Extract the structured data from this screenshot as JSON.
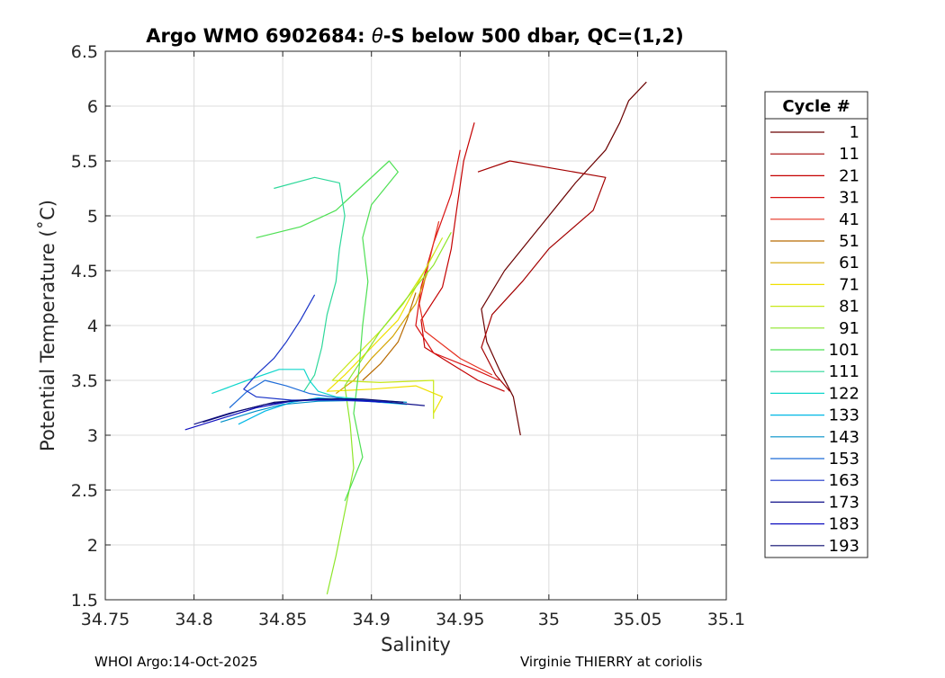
{
  "chart_data": {
    "type": "line",
    "title_prefix": "Argo WMO 6902684: ",
    "title_symbol": "θ",
    "title_suffix": "-S below 500 dbar,  QC=(1,2)",
    "xlabel": "Salinity",
    "ylabel": "Potential Temperature (˚C)",
    "xlim": [
      34.75,
      35.1
    ],
    "ylim": [
      1.5,
      6.5
    ],
    "xticks": [
      34.75,
      34.8,
      34.85,
      34.9,
      34.95,
      35,
      35.05,
      35.1
    ],
    "xtick_labels": [
      "34.75",
      "34.8",
      "34.85",
      "34.9",
      "34.95",
      "35",
      "35.05",
      "35.1"
    ],
    "yticks": [
      1.5,
      2,
      2.5,
      3,
      3.5,
      4,
      4.5,
      5,
      5.5,
      6,
      6.5
    ],
    "ytick_labels": [
      "1.5",
      "2",
      "2.5",
      "3",
      "3.5",
      "4",
      "4.5",
      "5",
      "5.5",
      "6",
      "6.5"
    ],
    "grid": true,
    "legend": {
      "title": "Cycle #",
      "placement": "right-outside",
      "entries": [
        {
          "label": "1",
          "color": "#6b0000"
        },
        {
          "label": "11",
          "color": "#a30000"
        },
        {
          "label": "21",
          "color": "#c40000"
        },
        {
          "label": "31",
          "color": "#d81010"
        },
        {
          "label": "41",
          "color": "#e63020"
        },
        {
          "label": "51",
          "color": "#b86a00"
        },
        {
          "label": "61",
          "color": "#d4a400"
        },
        {
          "label": "71",
          "color": "#f0e000"
        },
        {
          "label": "81",
          "color": "#c8e818"
        },
        {
          "label": "91",
          "color": "#8ee62a"
        },
        {
          "label": "101",
          "color": "#4ee054"
        },
        {
          "label": "111",
          "color": "#2ed89a"
        },
        {
          "label": "122",
          "color": "#10d6cc"
        },
        {
          "label": "133",
          "color": "#00b8e6"
        },
        {
          "label": "143",
          "color": "#0090c8"
        },
        {
          "label": "153",
          "color": "#1e6cd8"
        },
        {
          "label": "163",
          "color": "#1a34c8"
        },
        {
          "label": "173",
          "color": "#10108a"
        },
        {
          "label": "183",
          "color": "#1010c0"
        },
        {
          "label": "193",
          "color": "#0a0a6e"
        }
      ]
    },
    "series": [
      {
        "cycle": "1",
        "color": "#6b0000",
        "points": [
          [
            35.055,
            6.22
          ],
          [
            35.045,
            6.05
          ],
          [
            35.04,
            5.85
          ],
          [
            35.032,
            5.6
          ],
          [
            35.015,
            5.3
          ],
          [
            34.995,
            4.9
          ],
          [
            34.975,
            4.5
          ],
          [
            34.962,
            4.15
          ],
          [
            34.965,
            3.85
          ],
          [
            34.972,
            3.6
          ],
          [
            34.98,
            3.35
          ],
          [
            34.984,
            3.0
          ]
        ]
      },
      {
        "cycle": "11",
        "color": "#a30000",
        "points": [
          [
            34.96,
            5.4
          ],
          [
            34.978,
            5.5
          ],
          [
            35.032,
            5.35
          ],
          [
            35.025,
            5.05
          ],
          [
            35.0,
            4.7
          ],
          [
            34.985,
            4.4
          ],
          [
            34.968,
            4.1
          ],
          [
            34.962,
            3.8
          ],
          [
            34.97,
            3.55
          ],
          [
            34.978,
            3.4
          ]
        ]
      },
      {
        "cycle": "21",
        "color": "#c40000",
        "points": [
          [
            34.958,
            5.85
          ],
          [
            34.952,
            5.5
          ],
          [
            34.948,
            5.05
          ],
          [
            34.945,
            4.7
          ],
          [
            34.94,
            4.35
          ],
          [
            34.928,
            4.05
          ],
          [
            34.93,
            3.8
          ],
          [
            34.945,
            3.65
          ],
          [
            34.96,
            3.5
          ],
          [
            34.975,
            3.4
          ]
        ]
      },
      {
        "cycle": "31",
        "color": "#d81010",
        "points": [
          [
            34.95,
            5.6
          ],
          [
            34.945,
            5.2
          ],
          [
            34.935,
            4.75
          ],
          [
            34.928,
            4.35
          ],
          [
            34.925,
            4.0
          ],
          [
            34.935,
            3.75
          ],
          [
            34.958,
            3.6
          ],
          [
            34.972,
            3.5
          ]
        ]
      },
      {
        "cycle": "41",
        "color": "#e63020",
        "points": [
          [
            34.938,
            4.95
          ],
          [
            34.932,
            4.55
          ],
          [
            34.927,
            4.2
          ],
          [
            34.93,
            3.95
          ],
          [
            34.95,
            3.7
          ],
          [
            34.968,
            3.55
          ]
        ]
      },
      {
        "cycle": "51",
        "color": "#b86a00",
        "points": [
          [
            34.925,
            4.3
          ],
          [
            34.92,
            4.05
          ],
          [
            34.915,
            3.85
          ],
          [
            34.905,
            3.65
          ],
          [
            34.895,
            3.5
          ]
        ]
      },
      {
        "cycle": "61",
        "color": "#d4a400",
        "points": [
          [
            34.932,
            4.5
          ],
          [
            34.925,
            4.2
          ],
          [
            34.912,
            3.9
          ],
          [
            34.9,
            3.7
          ],
          [
            34.89,
            3.5
          ],
          [
            34.88,
            3.38
          ]
        ]
      },
      {
        "cycle": "71",
        "color": "#f0e000",
        "points": [
          [
            34.935,
            4.65
          ],
          [
            34.925,
            4.35
          ],
          [
            34.915,
            4.05
          ],
          [
            34.9,
            3.8
          ],
          [
            34.885,
            3.55
          ],
          [
            34.875,
            3.4
          ],
          [
            34.9,
            3.42
          ],
          [
            34.925,
            3.45
          ],
          [
            34.94,
            3.35
          ],
          [
            34.935,
            3.2
          ]
        ]
      },
      {
        "cycle": "81",
        "color": "#c8e818",
        "points": [
          [
            34.94,
            4.8
          ],
          [
            34.93,
            4.5
          ],
          [
            34.918,
            4.2
          ],
          [
            34.905,
            3.95
          ],
          [
            34.89,
            3.7
          ],
          [
            34.878,
            3.5
          ],
          [
            34.905,
            3.48
          ],
          [
            34.935,
            3.5
          ],
          [
            34.935,
            3.15
          ]
        ]
      },
      {
        "cycle": "91",
        "color": "#8ee62a",
        "points": [
          [
            34.945,
            4.85
          ],
          [
            34.935,
            4.55
          ],
          [
            34.92,
            4.25
          ],
          [
            34.905,
            3.95
          ],
          [
            34.895,
            3.7
          ],
          [
            34.885,
            3.45
          ],
          [
            34.888,
            3.1
          ],
          [
            34.89,
            2.7
          ],
          [
            34.885,
            2.3
          ],
          [
            34.88,
            1.9
          ],
          [
            34.875,
            1.55
          ]
        ]
      },
      {
        "cycle": "101",
        "color": "#4ee054",
        "points": [
          [
            34.835,
            4.8
          ],
          [
            34.86,
            4.9
          ],
          [
            34.88,
            5.05
          ],
          [
            34.91,
            5.5
          ],
          [
            34.915,
            5.4
          ],
          [
            34.9,
            5.1
          ],
          [
            34.895,
            4.8
          ],
          [
            34.898,
            4.4
          ],
          [
            34.895,
            4.0
          ],
          [
            34.893,
            3.6
          ],
          [
            34.89,
            3.2
          ],
          [
            34.895,
            2.8
          ],
          [
            34.885,
            2.4
          ]
        ]
      },
      {
        "cycle": "111",
        "color": "#2ed89a",
        "points": [
          [
            34.845,
            5.25
          ],
          [
            34.868,
            5.35
          ],
          [
            34.882,
            5.3
          ],
          [
            34.885,
            5.0
          ],
          [
            34.882,
            4.7
          ],
          [
            34.88,
            4.4
          ],
          [
            34.875,
            4.1
          ],
          [
            34.872,
            3.8
          ],
          [
            34.868,
            3.55
          ],
          [
            34.862,
            3.4
          ]
        ]
      },
      {
        "cycle": "122",
        "color": "#10d6cc",
        "points": [
          [
            34.81,
            3.38
          ],
          [
            34.83,
            3.5
          ],
          [
            34.848,
            3.6
          ],
          [
            34.862,
            3.6
          ],
          [
            34.865,
            3.5
          ],
          [
            34.87,
            3.4
          ],
          [
            34.88,
            3.35
          ],
          [
            34.9,
            3.32
          ]
        ]
      },
      {
        "cycle": "133",
        "color": "#00b8e6",
        "points": [
          [
            34.825,
            3.1
          ],
          [
            34.84,
            3.22
          ],
          [
            34.855,
            3.3
          ],
          [
            34.87,
            3.34
          ],
          [
            34.89,
            3.32
          ],
          [
            34.905,
            3.3
          ],
          [
            34.92,
            3.28
          ]
        ]
      },
      {
        "cycle": "143",
        "color": "#0090c8",
        "points": [
          [
            34.815,
            3.12
          ],
          [
            34.835,
            3.22
          ],
          [
            34.85,
            3.28
          ],
          [
            34.87,
            3.31
          ],
          [
            34.9,
            3.32
          ],
          [
            34.92,
            3.3
          ]
        ]
      },
      {
        "cycle": "153",
        "color": "#1e6cd8",
        "points": [
          [
            34.82,
            3.25
          ],
          [
            34.83,
            3.4
          ],
          [
            34.84,
            3.5
          ],
          [
            34.852,
            3.45
          ],
          [
            34.865,
            3.38
          ],
          [
            34.885,
            3.33
          ],
          [
            34.905,
            3.3
          ]
        ]
      },
      {
        "cycle": "163",
        "color": "#1a34c8",
        "points": [
          [
            34.868,
            4.28
          ],
          [
            34.86,
            4.05
          ],
          [
            34.852,
            3.85
          ],
          [
            34.845,
            3.7
          ],
          [
            34.835,
            3.55
          ],
          [
            34.828,
            3.42
          ],
          [
            34.835,
            3.35
          ],
          [
            34.855,
            3.32
          ],
          [
            34.88,
            3.32
          ],
          [
            34.91,
            3.3
          ]
        ]
      },
      {
        "cycle": "173",
        "color": "#10108a",
        "points": [
          [
            34.8,
            3.1
          ],
          [
            34.82,
            3.2
          ],
          [
            34.84,
            3.28
          ],
          [
            34.86,
            3.32
          ],
          [
            34.885,
            3.33
          ],
          [
            34.91,
            3.3
          ],
          [
            34.93,
            3.27
          ]
        ]
      },
      {
        "cycle": "183",
        "color": "#1010c0",
        "points": [
          [
            34.795,
            3.05
          ],
          [
            34.815,
            3.15
          ],
          [
            34.835,
            3.25
          ],
          [
            34.855,
            3.31
          ],
          [
            34.88,
            3.33
          ],
          [
            34.91,
            3.3
          ]
        ]
      },
      {
        "cycle": "193",
        "color": "#0a0a6e",
        "points": [
          [
            34.805,
            3.12
          ],
          [
            34.825,
            3.22
          ],
          [
            34.845,
            3.3
          ],
          [
            34.87,
            3.33
          ],
          [
            34.895,
            3.33
          ],
          [
            34.918,
            3.3
          ]
        ]
      }
    ]
  },
  "footer": {
    "left": "WHOI Argo:14-Oct-2025",
    "right": "Virginie THIERRY at coriolis"
  }
}
